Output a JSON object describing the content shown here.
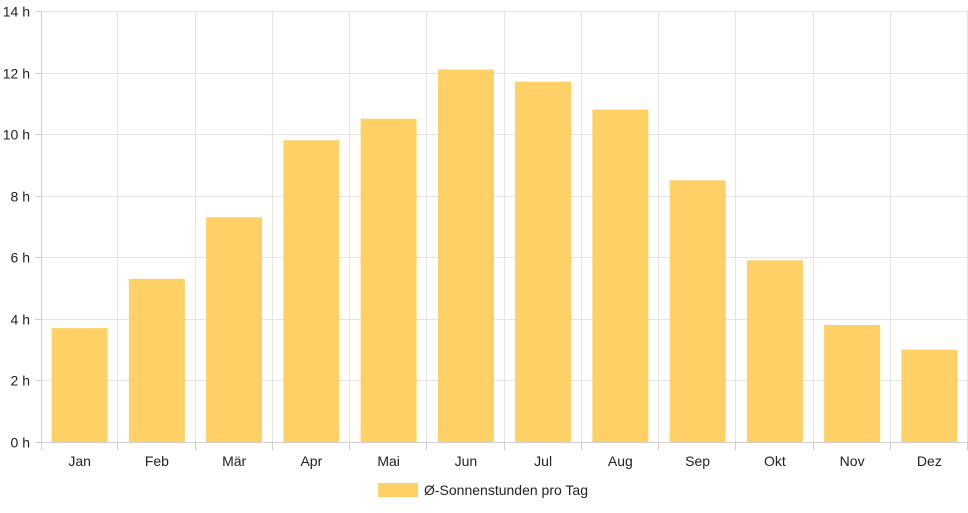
{
  "chart_data": {
    "type": "bar",
    "categories": [
      "Jan",
      "Feb",
      "Mär",
      "Apr",
      "Mai",
      "Jun",
      "Jul",
      "Aug",
      "Sep",
      "Okt",
      "Nov",
      "Dez"
    ],
    "series": [
      {
        "name": "Ø-Sonnenstunden pro Tag",
        "values": [
          3.7,
          5.3,
          7.3,
          9.8,
          10.5,
          12.1,
          11.7,
          10.8,
          8.5,
          5.9,
          3.8,
          3.0
        ],
        "color": "#fed066"
      }
    ],
    "y_ticks": [
      "0 h",
      "2 h",
      "4 h",
      "6 h",
      "8 h",
      "10 h",
      "12 h",
      "14 h"
    ],
    "ylim": [
      0,
      14
    ],
    "grid": true,
    "legend_position": "bottom"
  }
}
